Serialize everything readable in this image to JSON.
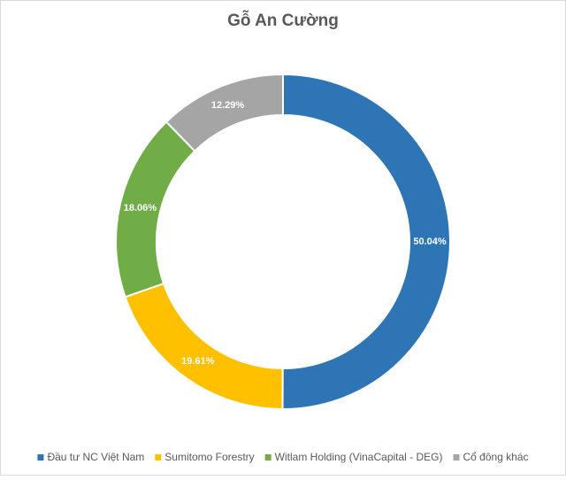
{
  "chart_data": {
    "type": "donut",
    "title": "Gỗ An Cường",
    "categories": [
      "Đầu tư NC Việt Nam",
      "Sumitomo Forestry",
      "Witlam Holding (VinaCapital - DEG)",
      "Cổ đông khác"
    ],
    "values": [
      50.04,
      19.61,
      18.06,
      12.29
    ],
    "value_labels": [
      "50.04%",
      "19.61%",
      "18.06%",
      "12.29%"
    ],
    "colors": [
      "#2e75b6",
      "#ffc000",
      "#70ad47",
      "#a5a5a5"
    ],
    "legend": "bottom"
  }
}
